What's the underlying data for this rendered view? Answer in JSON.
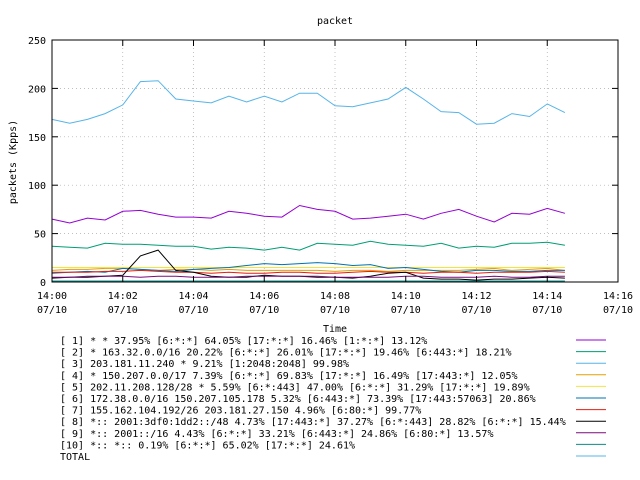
{
  "chart_data": {
    "type": "line",
    "title": "packet",
    "xlabel": "Time",
    "ylabel": "packets (Kpps)",
    "xlim": [
      "14:00",
      "14:16"
    ],
    "ylim": [
      0,
      250
    ],
    "y_ticks": [
      0,
      50,
      100,
      150,
      200,
      250
    ],
    "x_ticks": [
      {
        "time": "14:00",
        "date": "07/10"
      },
      {
        "time": "14:02",
        "date": "07/10"
      },
      {
        "time": "14:04",
        "date": "07/10"
      },
      {
        "time": "14:06",
        "date": "07/10"
      },
      {
        "time": "14:08",
        "date": "07/10"
      },
      {
        "time": "14:10",
        "date": "07/10"
      },
      {
        "time": "14:12",
        "date": "07/10"
      },
      {
        "time": "14:14",
        "date": "07/10"
      },
      {
        "time": "14:16",
        "date": "07/10"
      }
    ],
    "x": [
      "14:00",
      "14:00:30",
      "14:01",
      "14:01:30",
      "14:02",
      "14:02:30",
      "14:03",
      "14:03:30",
      "14:04",
      "14:04:30",
      "14:05",
      "14:05:30",
      "14:06",
      "14:06:30",
      "14:07",
      "14:07:30",
      "14:08",
      "14:08:30",
      "14:09",
      "14:09:30",
      "14:10",
      "14:10:30",
      "14:11",
      "14:11:30",
      "14:12",
      "14:12:30",
      "14:13",
      "14:13:30",
      "14:14",
      "14:14:30"
    ],
    "legend_placement": "below",
    "grid": true,
    "series": [
      {
        "name": "[ 1] * * 37.95%  [6:*:*] 64.05% [17:*:*] 16.46% [1:*:*] 13.12%",
        "color": "#9400d3",
        "values": [
          65,
          61,
          66,
          64,
          73,
          74,
          70,
          67,
          67,
          66,
          73,
          71,
          68,
          67,
          79,
          75,
          73,
          65,
          66,
          68,
          70,
          65,
          71,
          75,
          68,
          62,
          71,
          70,
          76,
          71
        ]
      },
      {
        "name": "[ 2] * 163.32.0.0/16 20.22%  [6:*:*] 26.01% [17:*:*] 19.46% [6:443:*] 18.21%",
        "color": "#009e73",
        "values": [
          37,
          36,
          35,
          40,
          39,
          39,
          38,
          37,
          37,
          34,
          36,
          35,
          33,
          36,
          33,
          40,
          39,
          38,
          42,
          39,
          38,
          37,
          40,
          35,
          37,
          36,
          40,
          40,
          41,
          38
        ]
      },
      {
        "name": "[ 3] 203.181.11.240 * 9.21%  [1:2048:2048] 99.98%",
        "color": "#56b4e9",
        "values": [
          0,
          0,
          0,
          0,
          0,
          0,
          0,
          0,
          0,
          0,
          0,
          0,
          0,
          0,
          0,
          0,
          0,
          0,
          0,
          0,
          0,
          0,
          0,
          0,
          0,
          0,
          0,
          0,
          0,
          0
        ]
      },
      {
        "name": "[ 4] * 150.207.0.0/17 7.39%  [6:*:*] 69.83% [17:*:*] 16.49% [17:443:*] 12.05%",
        "color": "#e69f00",
        "values": [
          12,
          13,
          13,
          14,
          14,
          13,
          12,
          13,
          13,
          12,
          13,
          12,
          12,
          12,
          12,
          12,
          11,
          12,
          12,
          11,
          12,
          12,
          12,
          12,
          13,
          14,
          12,
          13,
          14,
          12
        ]
      },
      {
        "name": "[ 5] 202.11.208.128/28 * 5.59%  [6:*:443] 47.00% [6:*:*] 31.29% [17:*:*] 19.89%",
        "color": "#f0e442",
        "values": [
          15,
          15,
          15,
          15,
          15,
          15,
          15,
          15,
          15,
          15,
          15,
          15,
          15,
          15,
          15,
          15,
          15,
          15,
          15,
          15,
          15,
          15,
          15,
          15,
          15,
          15,
          15,
          15,
          15,
          15
        ]
      },
      {
        "name": "[ 6] 172.38.0.0/16 150.207.105.178 5.32%  [6:443:*] 73.39% [17:443:57063] 20.86%",
        "color": "#0072b2",
        "values": [
          9,
          10,
          11,
          10,
          14,
          13,
          12,
          11,
          13,
          14,
          15,
          17,
          19,
          18,
          19,
          20,
          19,
          17,
          18,
          14,
          15,
          13,
          11,
          10,
          12,
          12,
          11,
          11,
          12,
          12
        ]
      },
      {
        "name": "[ 7] 155.162.104.192/26 203.181.27.150 4.96%  [6:80:*] 99.77%",
        "color": "#e51e10",
        "values": [
          10,
          10,
          10,
          11,
          11,
          12,
          11,
          10,
          10,
          9,
          10,
          9,
          9,
          10,
          10,
          9,
          9,
          10,
          11,
          10,
          10,
          9,
          10,
          10,
          9,
          10,
          10,
          10,
          11,
          10
        ]
      },
      {
        "name": "[ 8] *:: 2001:3df0:1dd2::/48 4.73%  [17:443:*] 37.27% [6:*:443] 28.82% [6:*:*] 15.44%",
        "color": "#000000",
        "values": [
          4,
          5,
          5,
          6,
          7,
          27,
          33,
          12,
          10,
          6,
          5,
          5,
          7,
          6,
          6,
          5,
          5,
          4,
          6,
          9,
          10,
          4,
          3,
          3,
          2,
          3,
          3,
          4,
          5,
          4
        ]
      },
      {
        "name": "[ 9] *:: 2001::/16 4.43%  [6:*:*] 33.21% [6:443:*] 24.86% [6:80:*] 13.57%",
        "color": "#7a0c7a",
        "values": [
          5,
          5,
          6,
          6,
          6,
          5,
          6,
          6,
          5,
          5,
          5,
          6,
          6,
          6,
          6,
          6,
          5,
          5,
          5,
          5,
          6,
          6,
          5,
          5,
          5,
          6,
          5,
          5,
          6,
          6
        ]
      },
      {
        "name": "[10] *:: *:: 0.19%  [6:*:*] 65.02% [17:*:*] 24.61%",
        "color": "#0d8c87",
        "values": [
          1,
          1,
          1,
          1,
          1,
          1,
          1,
          1,
          1,
          1,
          1,
          1,
          1,
          1,
          1,
          1,
          1,
          1,
          1,
          1,
          1,
          1,
          1,
          1,
          1,
          1,
          1,
          1,
          1,
          1
        ]
      },
      {
        "name": "TOTAL",
        "color": "#56b4e9",
        "values": [
          168,
          164,
          168,
          174,
          183,
          207,
          208,
          189,
          187,
          185,
          192,
          186,
          192,
          186,
          195,
          195,
          182,
          181,
          185,
          189,
          201,
          189,
          176,
          175,
          163,
          164,
          174,
          171,
          184,
          175
        ]
      }
    ]
  }
}
